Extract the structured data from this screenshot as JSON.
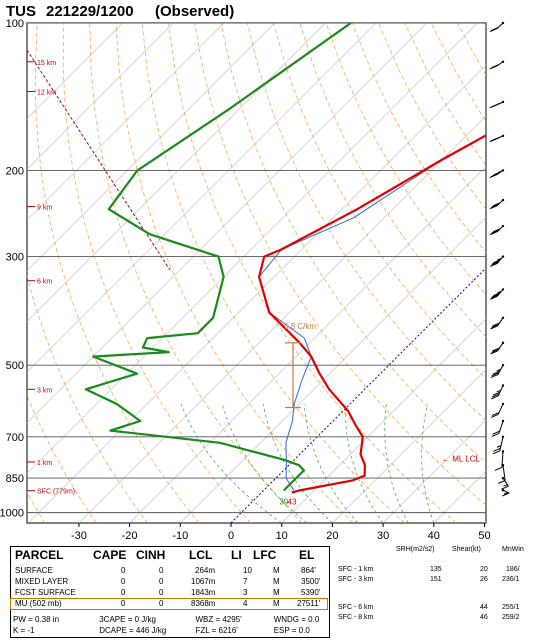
{
  "title": {
    "station": "TUS",
    "datetime": "221229/1200",
    "status": "(Observed)"
  },
  "chart_data": {
    "type": "skew-t",
    "pressure_levels": [
      "100",
      "200",
      "300",
      "500",
      "700",
      "850",
      "1000"
    ],
    "temperature_ticks": [
      "-30",
      "-20",
      "-10",
      "0",
      "10",
      "20",
      "30",
      "40",
      "50"
    ],
    "height_labels": [
      "15 km",
      "12 km",
      "9 km",
      "6 km",
      "3 km",
      "1 km",
      "SFC (779m)"
    ],
    "surface_temperature": "43",
    "surface_dewpoint": "39",
    "ml_lcl_label": "← ML LCL",
    "effective_layer_label": "6.8 C/km",
    "temperature_profile": [
      [
        -20.5,
        100
      ],
      [
        -22,
        150
      ],
      [
        -30,
        190
      ],
      [
        -33,
        210
      ],
      [
        -37,
        240
      ],
      [
        -44,
        290
      ],
      [
        -46,
        300
      ],
      [
        -43,
        330
      ],
      [
        -34,
        390
      ],
      [
        -22,
        450
      ],
      [
        -17,
        480
      ],
      [
        -12,
        520
      ],
      [
        -7,
        560
      ],
      [
        1,
        620
      ],
      [
        5,
        660
      ],
      [
        9,
        700
      ],
      [
        12,
        760
      ],
      [
        15,
        800
      ],
      [
        17,
        840
      ],
      [
        15.5,
        860
      ],
      [
        7,
        901
      ],
      [
        6,
        910
      ]
    ],
    "dewpoint_profile": [
      [
        -75,
        100
      ],
      [
        -82,
        150
      ],
      [
        -88,
        200
      ],
      [
        -86,
        240
      ],
      [
        -73,
        270
      ],
      [
        -55,
        300
      ],
      [
        -50,
        330
      ],
      [
        -44,
        400
      ],
      [
        -44,
        430
      ],
      [
        -53,
        440
      ],
      [
        -52,
        460
      ],
      [
        -46,
        470
      ],
      [
        -60,
        480
      ],
      [
        -48,
        520
      ],
      [
        -55,
        560
      ],
      [
        -46,
        600
      ],
      [
        -38,
        650
      ],
      [
        -42,
        680
      ],
      [
        -18,
        720
      ],
      [
        -2,
        780
      ],
      [
        2,
        800
      ],
      [
        4,
        820
      ],
      [
        4,
        880
      ],
      [
        4,
        901
      ]
    ],
    "parcel_profile": [
      [
        -20.5,
        100
      ],
      [
        -22,
        150
      ],
      [
        -30,
        190
      ],
      [
        -36,
        250
      ],
      [
        -44,
        290
      ],
      [
        -43,
        330
      ],
      [
        -34,
        390
      ],
      [
        -22,
        440
      ],
      [
        -17,
        480
      ],
      [
        -14,
        540
      ],
      [
        -11,
        600
      ],
      [
        -8,
        650
      ],
      [
        -5,
        720
      ],
      [
        -1,
        790
      ],
      [
        2,
        850
      ],
      [
        6,
        901
      ]
    ],
    "wind_barbs": [
      {
        "pressure": 100,
        "dir": 250,
        "speed_kt": 20
      },
      {
        "pressure": 120,
        "dir": 255,
        "speed_kt": 30
      },
      {
        "pressure": 145,
        "dir": 260,
        "speed_kt": 35
      },
      {
        "pressure": 170,
        "dir": 260,
        "speed_kt": 40
      },
      {
        "pressure": 200,
        "dir": 255,
        "speed_kt": 45
      },
      {
        "pressure": 230,
        "dir": 250,
        "speed_kt": 40
      },
      {
        "pressure": 260,
        "dir": 250,
        "speed_kt": 40
      },
      {
        "pressure": 300,
        "dir": 245,
        "speed_kt": 35
      },
      {
        "pressure": 350,
        "dir": 245,
        "speed_kt": 35
      },
      {
        "pressure": 400,
        "dir": 240,
        "speed_kt": 30
      },
      {
        "pressure": 450,
        "dir": 240,
        "speed_kt": 30
      },
      {
        "pressure": 500,
        "dir": 235,
        "speed_kt": 25
      },
      {
        "pressure": 550,
        "dir": 230,
        "speed_kt": 25
      },
      {
        "pressure": 600,
        "dir": 230,
        "speed_kt": 20
      },
      {
        "pressure": 650,
        "dir": 220,
        "speed_kt": 20
      },
      {
        "pressure": 700,
        "dir": 210,
        "speed_kt": 15
      },
      {
        "pressure": 750,
        "dir": 190,
        "speed_kt": 10
      },
      {
        "pressure": 800,
        "dir": 160,
        "speed_kt": 10
      },
      {
        "pressure": 850,
        "dir": 120,
        "speed_kt": 5
      },
      {
        "pressure": 900,
        "dir": 100,
        "speed_kt": 5
      }
    ],
    "colors": {
      "temperature": "#e00000",
      "dewpoint": "#1a8a1a",
      "parcel_virtual": "#3366cc",
      "dry_adiabat": "#ff9933",
      "moist_adiabat": "#33aa33",
      "isotherm_zero": "#0000cc",
      "effective_layer": "#c08040",
      "hodo_height": "#cc0000"
    }
  },
  "parcel_table": {
    "headers": [
      "PARCEL",
      "CAPE",
      "CINH",
      "LCL",
      "LI",
      "LFC",
      "EL"
    ],
    "rows": [
      [
        "SURFACE",
        "0",
        "0",
        "264m",
        "10",
        "M",
        "864'"
      ],
      [
        "MIXED LAYER",
        "0",
        "0",
        "1067m",
        "7",
        "M",
        "3500'"
      ],
      [
        "FCST SURFACE",
        "0",
        "0",
        "1843m",
        "3",
        "M",
        "5390'"
      ],
      [
        "MU (502 mb)",
        "0",
        "0",
        "8368m",
        "4",
        "M",
        "27511'"
      ]
    ],
    "footer": [
      [
        "PW = 0.38 in",
        "3CAPE = 0 J/kg",
        "WBZ = 4295'",
        "WNDG = 0.0"
      ],
      [
        "K = -1",
        "DCAPE = 446 J/kg",
        "FZL = 6216'",
        "ESP = 0.0"
      ]
    ]
  },
  "shear_table": {
    "headers": [
      "SRH(m2/s2)",
      "Shear(kt)",
      "MnWin"
    ],
    "rows": [
      [
        "SFC - 1 km",
        "135",
        "20",
        "186/"
      ],
      [
        "SFC - 3 km",
        "151",
        "26",
        "236/1"
      ],
      [
        "SFC - 6 km",
        "",
        "44",
        "255/1"
      ],
      [
        "SFC - 8 km",
        "",
        "46",
        "259/2"
      ]
    ]
  }
}
